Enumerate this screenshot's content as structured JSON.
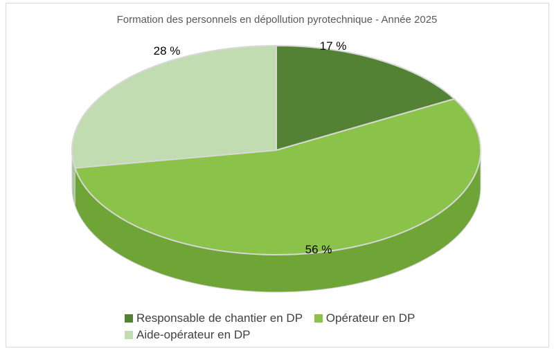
{
  "chart_data": {
    "type": "pie",
    "style": "3d",
    "title": "Formation des personnels en dépollution pyrotechnique  - Année 2025",
    "categories": [
      "Responsable de chantier en DP",
      "Opérateur en DP",
      "Aide-opérateur en DP"
    ],
    "values": [
      17,
      56,
      28
    ],
    "labels": [
      "17 %",
      "56 %",
      "28 %"
    ],
    "colors": [
      "#548235",
      "#8bc34a",
      "#c0dcb0"
    ],
    "side_colors": [
      "#3e6427",
      "#6fa536",
      "#a6c796"
    ],
    "legend_position": "bottom"
  }
}
